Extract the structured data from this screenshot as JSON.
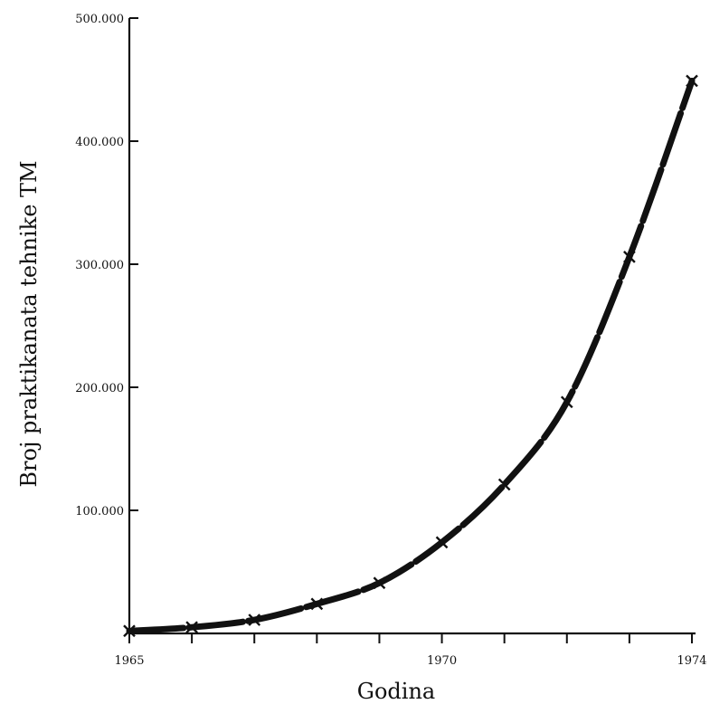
{
  "chart_data": {
    "type": "line",
    "xlabel": "Godina",
    "ylabel": "Broj praktikanata tehnike TM",
    "xlim": [
      1965,
      1974
    ],
    "ylim": [
      0,
      500000
    ],
    "x_ticks": [
      1965,
      1966,
      1967,
      1968,
      1969,
      1970,
      1971,
      1972,
      1973,
      1974
    ],
    "x_tick_labels": [
      {
        "value": 1965,
        "label": "1965"
      },
      {
        "value": 1970,
        "label": "1970"
      },
      {
        "value": 1974,
        "label": "1974"
      }
    ],
    "y_ticks": [
      100000,
      200000,
      300000,
      400000,
      500000
    ],
    "y_tick_labels": [
      "100.000",
      "200.000",
      "300.000",
      "400.000",
      "500.000"
    ],
    "grid": false,
    "series": [
      {
        "x": [
          1965,
          1966,
          1967,
          1968,
          1969,
          1970,
          1971,
          1972,
          1973,
          1974
        ],
        "values": [
          2000,
          5000,
          11000,
          24000,
          41000,
          74000,
          121000,
          188000,
          306000,
          449000
        ],
        "marker": "x",
        "color": "#111111"
      }
    ]
  }
}
